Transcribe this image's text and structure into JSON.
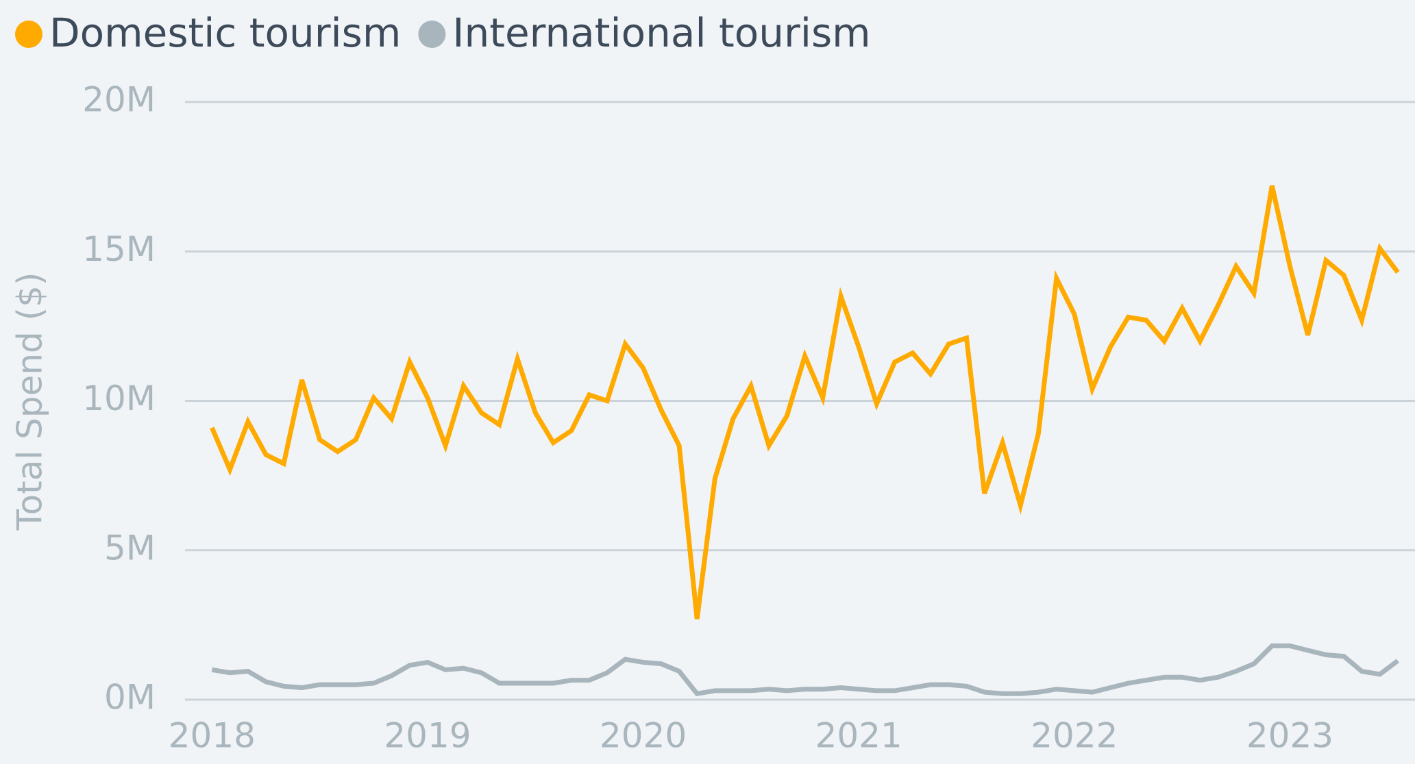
{
  "chart_data": {
    "type": "line",
    "y_label": "Total Spend ($)",
    "x": [
      2018,
      2018.083,
      2018.167,
      2018.25,
      2018.333,
      2018.417,
      2018.5,
      2018.583,
      2018.667,
      2018.75,
      2018.833,
      2018.917,
      2019,
      2019.083,
      2019.167,
      2019.25,
      2019.333,
      2019.417,
      2019.5,
      2019.583,
      2019.667,
      2019.75,
      2019.833,
      2019.917,
      2020,
      2020.083,
      2020.167,
      2020.25,
      2020.333,
      2020.417,
      2020.5,
      2020.583,
      2020.667,
      2020.75,
      2020.833,
      2020.917,
      2021,
      2021.083,
      2021.167,
      2021.25,
      2021.333,
      2021.417,
      2021.5,
      2021.583,
      2021.667,
      2021.75,
      2021.833,
      2021.917,
      2022,
      2022.083,
      2022.167,
      2022.25,
      2022.333,
      2022.417,
      2022.5,
      2022.583,
      2022.667,
      2022.75,
      2022.833,
      2022.917,
      2023,
      2023.083,
      2023.167,
      2023.25,
      2023.333,
      2023.417,
      2023.5
    ],
    "series": [
      {
        "name": "Domestic tourism",
        "color": "#FFAA00",
        "values": [
          9.1,
          7.7,
          9.3,
          8.2,
          7.9,
          10.7,
          8.7,
          8.3,
          8.7,
          10.1,
          9.4,
          11.3,
          10.1,
          8.5,
          10.5,
          9.6,
          9.2,
          11.4,
          9.6,
          8.6,
          9.0,
          10.2,
          10.0,
          11.9,
          11.1,
          9.7,
          8.5,
          2.7,
          7.4,
          9.4,
          10.5,
          8.5,
          9.5,
          11.5,
          10.1,
          13.5,
          11.8,
          9.9,
          11.3,
          11.6,
          10.9,
          11.9,
          12.1,
          6.9,
          8.6,
          6.5,
          8.9,
          14.1,
          12.9,
          10.4,
          11.8,
          12.8,
          12.7,
          12.0,
          13.1,
          12.0,
          13.2,
          14.5,
          13.6,
          17.2,
          14.5,
          12.2,
          14.7,
          14.2,
          12.7,
          15.1,
          14.3
        ]
      },
      {
        "name": "International tourism",
        "color": "#A9B5BC",
        "values": [
          1.0,
          0.9,
          0.95,
          0.6,
          0.45,
          0.4,
          0.5,
          0.5,
          0.5,
          0.55,
          0.8,
          1.15,
          1.25,
          1.0,
          1.05,
          0.9,
          0.55,
          0.55,
          0.55,
          0.55,
          0.65,
          0.65,
          0.9,
          1.35,
          1.25,
          1.2,
          0.95,
          0.2,
          0.3,
          0.3,
          0.3,
          0.35,
          0.3,
          0.35,
          0.35,
          0.4,
          0.35,
          0.3,
          0.3,
          0.4,
          0.5,
          0.5,
          0.45,
          0.25,
          0.2,
          0.2,
          0.25,
          0.35,
          0.3,
          0.25,
          0.4,
          0.55,
          0.65,
          0.75,
          0.75,
          0.65,
          0.75,
          0.95,
          1.2,
          1.8,
          1.8,
          1.65,
          1.5,
          1.45,
          0.95,
          0.85,
          1.3
        ]
      }
    ],
    "xlim": [
      2017.875,
      2023.58
    ],
    "xticks": [
      2018,
      2019,
      2020,
      2021,
      2022,
      2023
    ],
    "ylim": [
      0,
      20
    ],
    "yticks": [
      {
        "value": 0,
        "label": "0M"
      },
      {
        "value": 5,
        "label": "5M"
      },
      {
        "value": 10,
        "label": "10M"
      },
      {
        "value": 15,
        "label": "15M"
      },
      {
        "value": 20,
        "label": "20M"
      }
    ],
    "grid": true,
    "legend": "top-left"
  }
}
